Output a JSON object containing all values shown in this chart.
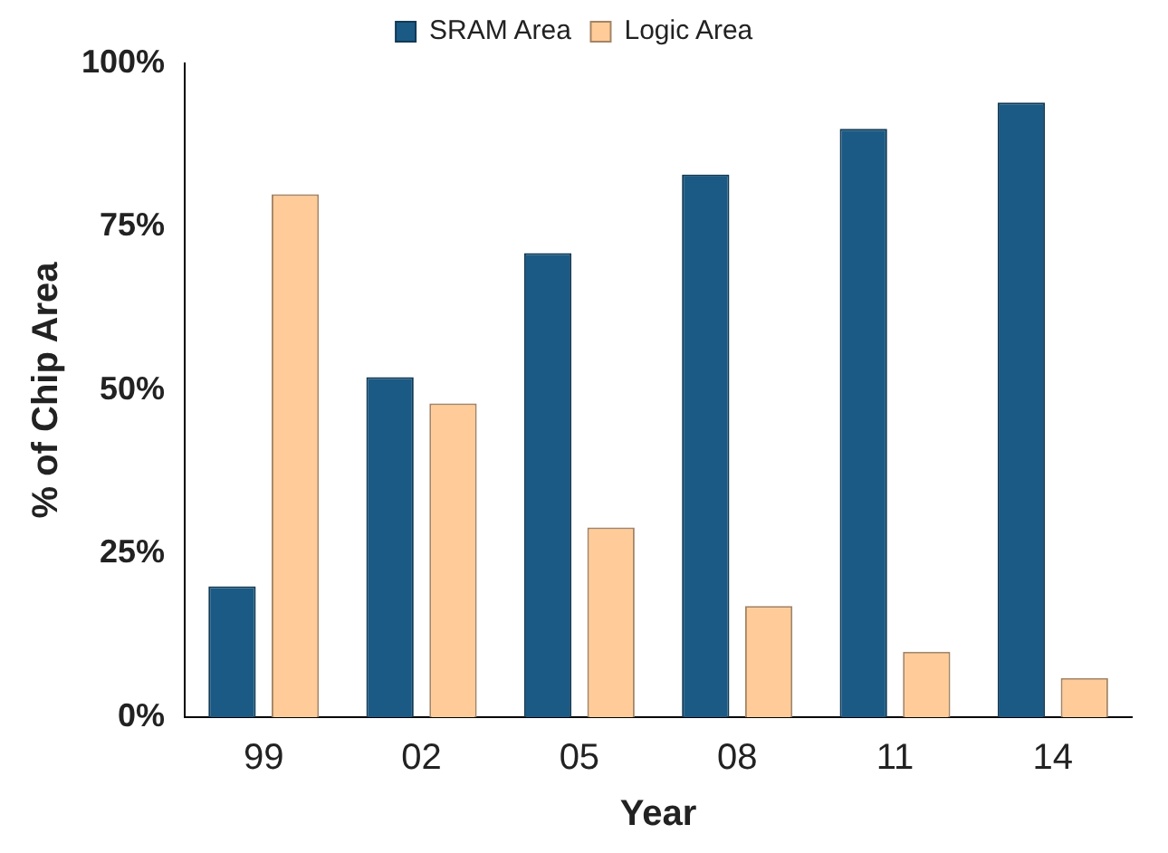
{
  "chart_data": {
    "type": "bar",
    "xlabel": "Year",
    "ylabel": "% of Chip Area",
    "categories": [
      "99",
      "02",
      "05",
      "08",
      "11",
      "14"
    ],
    "series": [
      {
        "name": "SRAM Area",
        "color": "#1b5a84",
        "values": [
          20,
          52,
          71,
          83,
          90,
          94
        ]
      },
      {
        "name": "Logic Area",
        "color": "#ffcc99",
        "values": [
          80,
          48,
          29,
          17,
          10,
          6
        ]
      }
    ],
    "ylim": [
      0,
      100
    ],
    "yticks": [
      {
        "value": 0,
        "label": "0%"
      },
      {
        "value": 25,
        "label": "25%"
      },
      {
        "value": 50,
        "label": "50%"
      },
      {
        "value": 75,
        "label": "75%"
      },
      {
        "value": 100,
        "label": "100%"
      }
    ],
    "grid": false,
    "legend": "top"
  }
}
